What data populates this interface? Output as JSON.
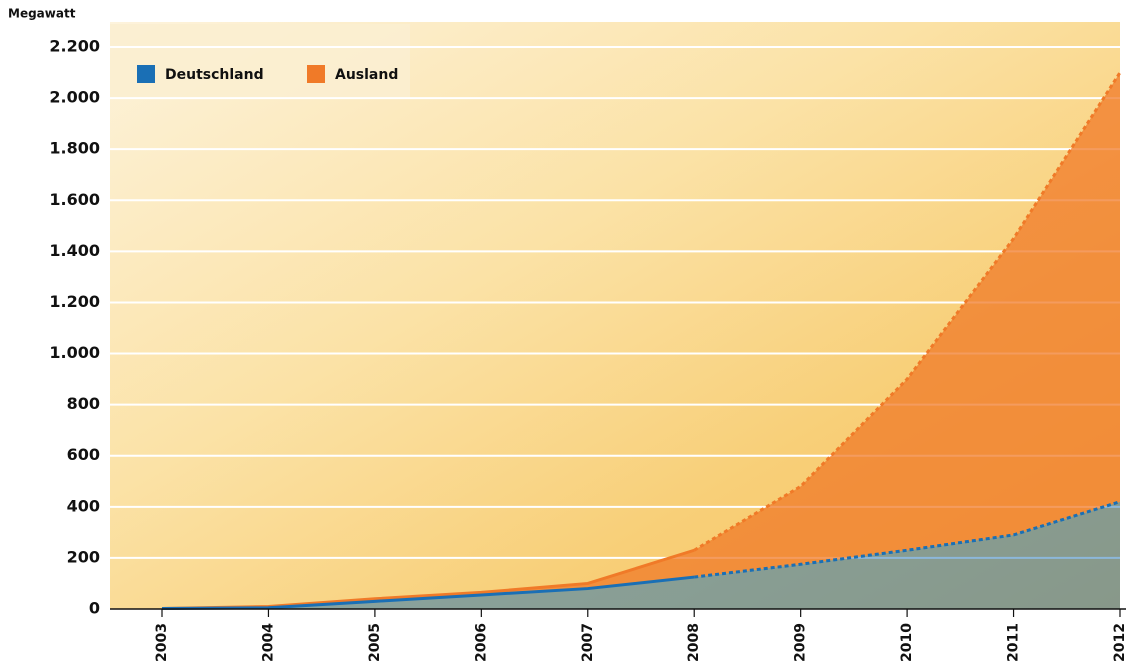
{
  "chart_data": {
    "type": "area",
    "y_label": "Megawatt",
    "categories": [
      "2003",
      "2004",
      "2005",
      "2006",
      "2007",
      "2008",
      "2009",
      "2010",
      "2011",
      "2012"
    ],
    "series": [
      {
        "name": "Deutschland",
        "color": "#1a6fb5",
        "values": [
          2,
          5,
          30,
          55,
          80,
          125,
          175,
          230,
          290,
          420
        ]
      },
      {
        "name": "Ausland",
        "color": "#f07a28",
        "values": [
          0,
          5,
          10,
          10,
          20,
          105,
          305,
          670,
          1160,
          1680
        ]
      }
    ],
    "stacked": true,
    "ylim": [
      0,
      2200
    ],
    "yticks": [
      0,
      200,
      400,
      600,
      800,
      {
        "value": 1000,
        "label": "1.000"
      },
      {
        "value": 1200,
        "label": "1.200"
      },
      {
        "value": 1400,
        "label": "1.400"
      },
      {
        "value": 1600,
        "label": "1.600"
      },
      {
        "value": 1800,
        "label": "1.800"
      },
      {
        "value": 2000,
        "label": "2.000"
      },
      {
        "value": 2200,
        "label": "2.200"
      }
    ],
    "grid": true,
    "legend": "top-left"
  }
}
